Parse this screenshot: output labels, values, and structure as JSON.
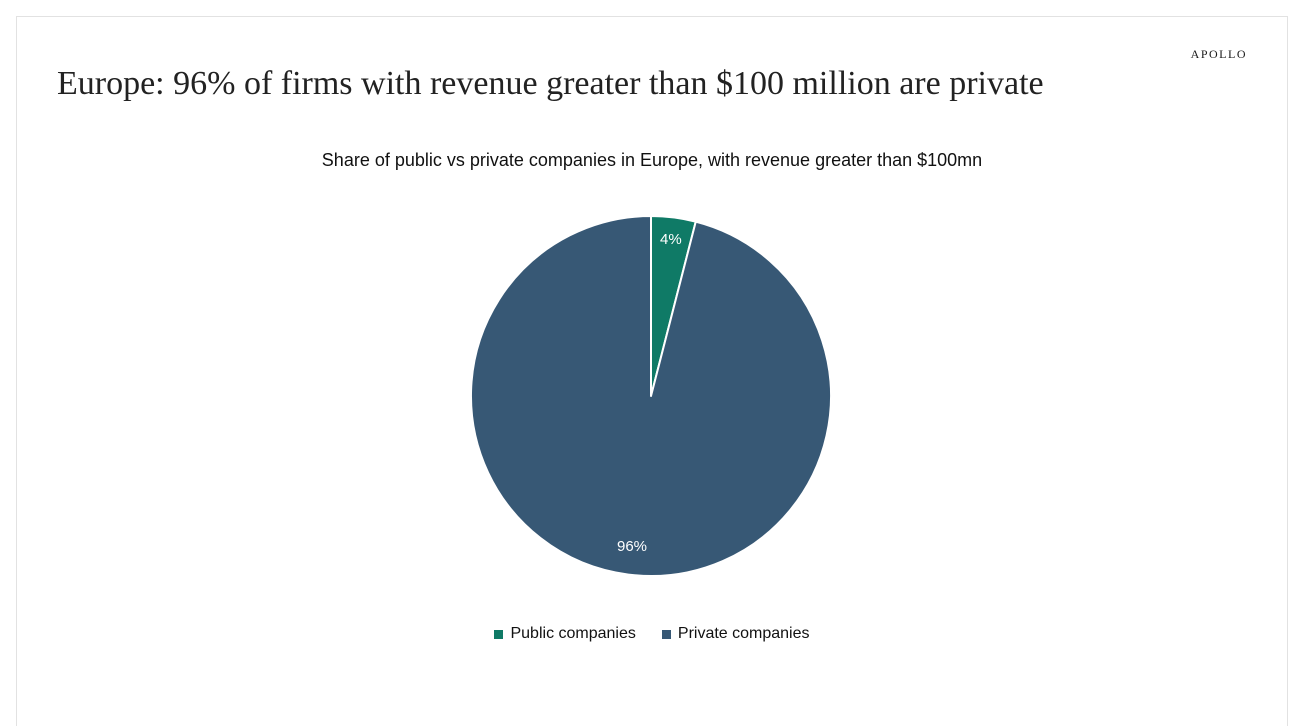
{
  "brand": "APOLLO",
  "headline": "Europe: 96% of  firms with revenue greater than $100 million are private",
  "chart_data": {
    "type": "pie",
    "title": "Share of public vs private companies in Europe, with revenue greater than $100mn",
    "slices": [
      {
        "name": "Public companies",
        "value": 4,
        "label": "4%",
        "color": "#0f7a66"
      },
      {
        "name": "Private companies",
        "value": 96,
        "label": "96%",
        "color": "#375875"
      }
    ],
    "start_angle": "12 o'clock",
    "direction": "clockwise",
    "slice_border_color": "#ffffff",
    "legend": "bottom-center"
  }
}
